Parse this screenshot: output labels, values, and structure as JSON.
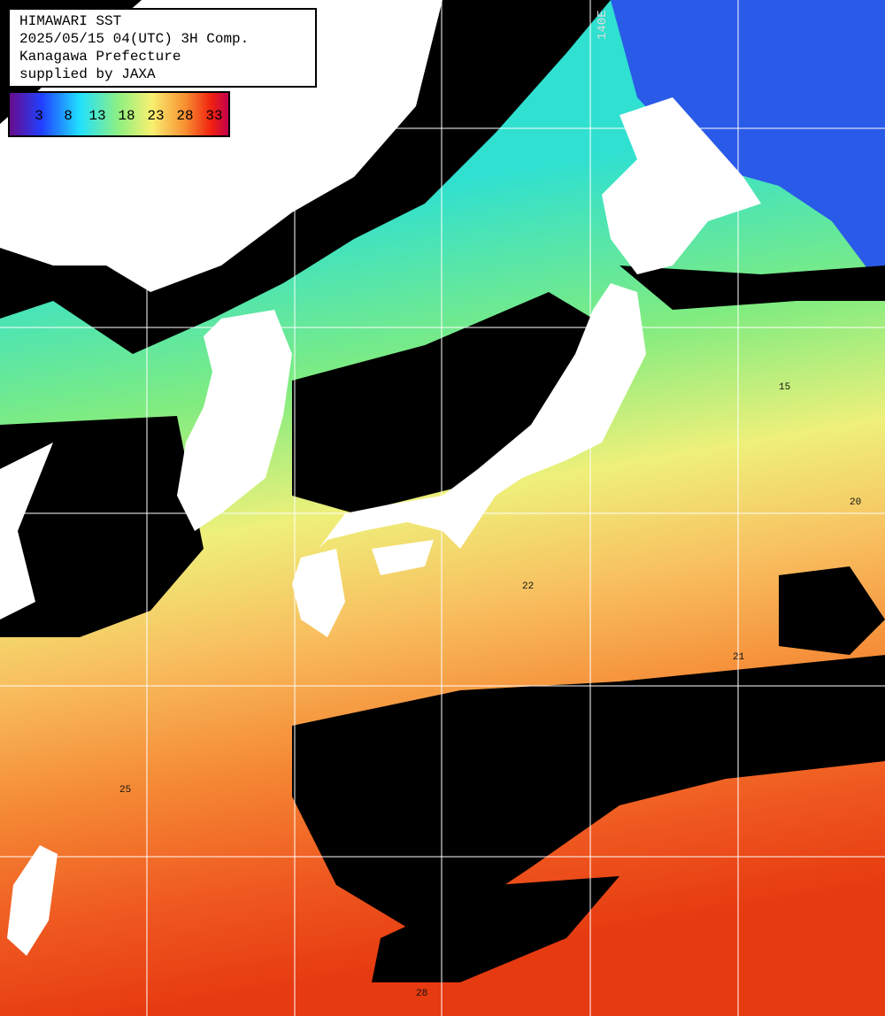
{
  "header": {
    "lines": [
      "HIMAWARI SST",
      "2025/05/15 04(UTC) 3H Comp.",
      "Kanagawa Prefecture",
      "supplied by JAXA"
    ]
  },
  "colorbar": {
    "labels": [
      3,
      8,
      13,
      18,
      23,
      28,
      33
    ]
  },
  "grid": {
    "lon_label": "140E"
  },
  "contour_labels": [
    22,
    21,
    20,
    25,
    28,
    15
  ]
}
